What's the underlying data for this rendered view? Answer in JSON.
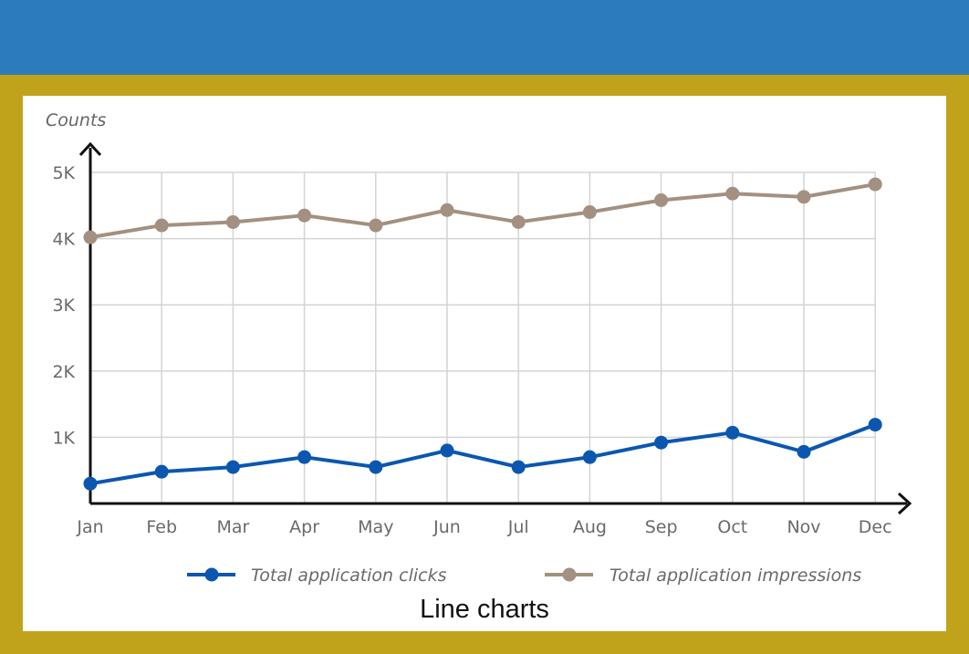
{
  "caption": "Line charts",
  "colors": {
    "header": "#2b7bbd",
    "frame": "#c0a31a",
    "clicks": "#0b57b0",
    "impressions": "#a39080",
    "grid": "#d4d4d4"
  },
  "chart_data": {
    "type": "line",
    "title": "",
    "xlabel": "",
    "ylabel": "Counts",
    "categories": [
      "Jan",
      "Feb",
      "Mar",
      "Apr",
      "May",
      "Jun",
      "Jul",
      "Aug",
      "Sep",
      "Oct",
      "Nov",
      "Dec"
    ],
    "ylim": [
      0,
      5000
    ],
    "yticks": [
      1000,
      2000,
      3000,
      4000,
      5000
    ],
    "ytick_labels": [
      "1K",
      "2K",
      "3K",
      "4K",
      "5K"
    ],
    "grid": true,
    "legend_position": "bottom",
    "series": [
      {
        "name": "Total application clicks",
        "color": "#0b57b0",
        "values": [
          300,
          480,
          550,
          700,
          550,
          800,
          550,
          700,
          920,
          1070,
          780,
          1190
        ]
      },
      {
        "name": "Total application impressions",
        "color": "#a39080",
        "values": [
          4020,
          4200,
          4250,
          4350,
          4200,
          4430,
          4250,
          4400,
          4580,
          4680,
          4630,
          4820
        ]
      }
    ]
  }
}
